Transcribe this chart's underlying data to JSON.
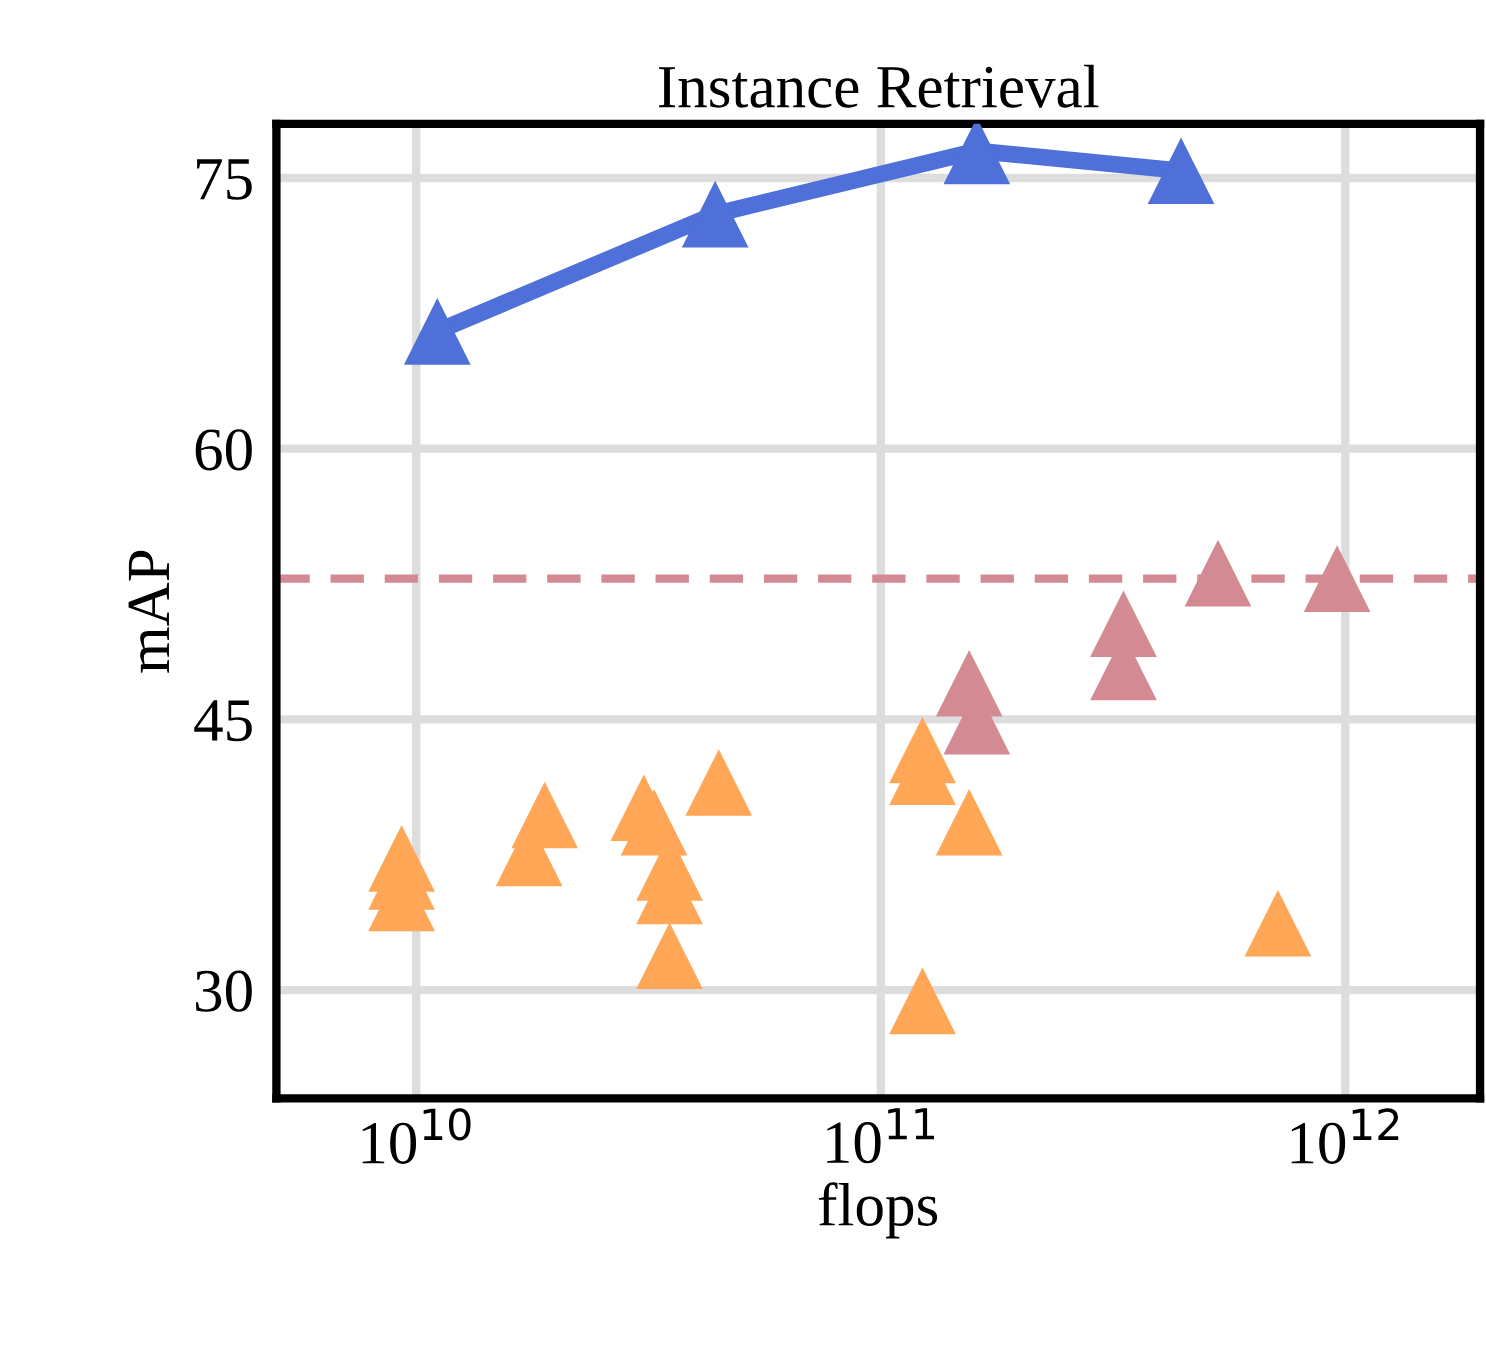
{
  "chart_data": {
    "type": "scatter",
    "title": "Instance Retrieval",
    "xlabel": "flops",
    "ylabel": "mAP",
    "log": "x",
    "grid": true,
    "marker": "triangle",
    "xlim": [
      5000000000.0,
      1950000000000.0
    ],
    "xticks": [
      {
        "value": 10000000000.0,
        "label": "10$^{10}$"
      },
      {
        "value": 100000000000.0,
        "label": "10$^{11}$"
      },
      {
        "value": 1000000000000.0,
        "label": "10$^{12}$"
      }
    ],
    "ylim": [
      24,
      78
    ],
    "yticks": [
      30,
      45,
      60,
      75
    ],
    "series": [
      {
        "type": "line",
        "color": "#4f6fd9",
        "x": [
          11100000000.0,
          44000000000.0,
          161000000000.0,
          443000000000.0
        ],
        "values": [
          66.5,
          73.0,
          76.5,
          75.4
        ]
      },
      {
        "color": "#d48a93",
        "x": [
          532000000000.0,
          960000000000.0,
          333000000000.0,
          333000000000.0,
          155000000000.0,
          161000000000.0
        ],
        "values": [
          53.1,
          52.8,
          50.3,
          47.9,
          47.0,
          44.9
        ]
      },
      {
        "color": "#ffa657",
        "x": [
          123000000000.0,
          123000000000.0,
          155000000000.0,
          123000000000.0,
          716000000000.0,
          44800000000.0,
          30900000000.0,
          32500000000.0,
          35100000000.0,
          35100000000.0,
          35100000000.0,
          18900000000.0,
          17500000000.0,
          9300000000.0,
          9300000000.0,
          9300000000.0
        ],
        "values": [
          43.3,
          42.1,
          39.3,
          29.4,
          33.7,
          41.5,
          40.1,
          39.3,
          36.8,
          35.5,
          31.9,
          39.7,
          37.6,
          37.3,
          36.3,
          35.1
        ]
      }
    ],
    "ref_lines": [
      {
        "axis": "y",
        "value": 52.8,
        "color": "#d48a93",
        "line_style": "dashed"
      }
    ]
  }
}
